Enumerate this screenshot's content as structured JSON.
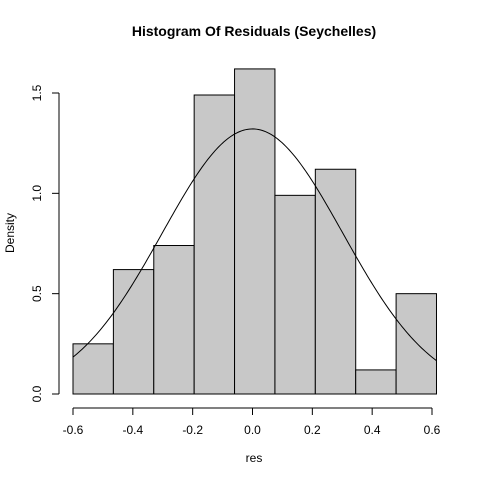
{
  "chart_data": {
    "type": "bar",
    "title": "Histogram Of Residuals (Seychelles)",
    "xlabel": "res",
    "ylabel": "Density",
    "xlim": [
      -0.6,
      0.6
    ],
    "ylim": [
      0,
      1.6
    ],
    "x_ticks": [
      -0.6,
      -0.4,
      -0.2,
      0.0,
      0.2,
      0.4,
      0.6
    ],
    "x_tick_labels": [
      "-0.6",
      "-0.4",
      "-0.2",
      "0.0",
      "0.2",
      "0.4",
      "0.6"
    ],
    "y_ticks": [
      0.0,
      0.5,
      1.0,
      1.5
    ],
    "y_tick_labels": [
      "0.0",
      "0.5",
      "1.0",
      "1.5"
    ],
    "bin_edges": [
      -0.6,
      -0.465,
      -0.33,
      -0.195,
      -0.06,
      0.075,
      0.21,
      0.345,
      0.48,
      0.615
    ],
    "values": [
      0.25,
      0.62,
      0.74,
      1.49,
      1.62,
      0.99,
      1.12,
      0.12,
      0.5
    ],
    "density_curve": {
      "type": "normal",
      "mean": 0.0,
      "sd": 0.302
    },
    "grid": false,
    "colors": {
      "bar_fill": "#c8c8c8",
      "bar_stroke": "#000000",
      "curve": "#000000"
    }
  }
}
